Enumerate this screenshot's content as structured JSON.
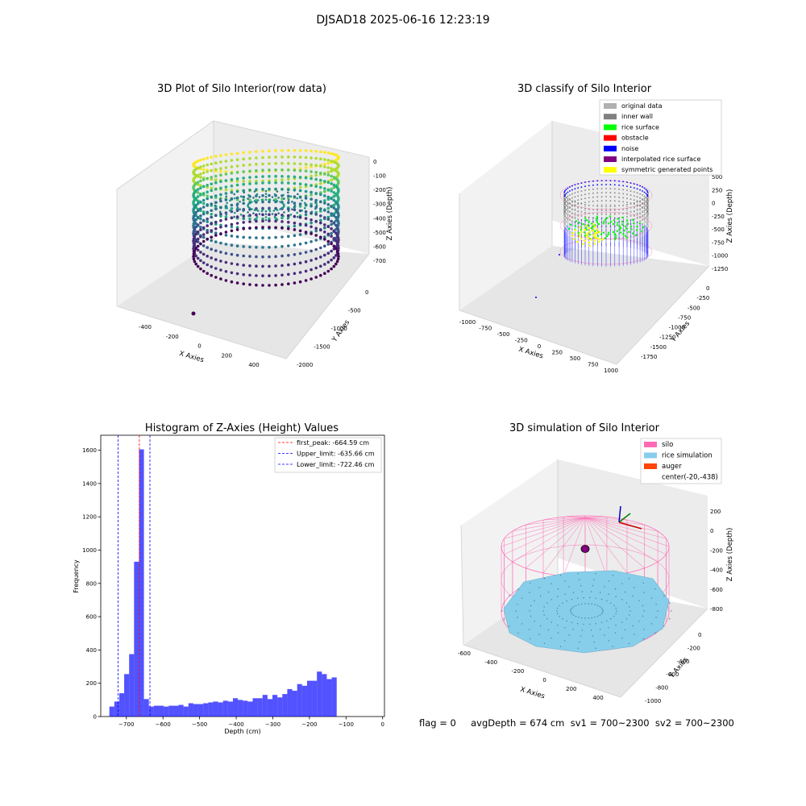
{
  "figure": {
    "suptitle": "DJSAD18 2025-06-16 12:23:19",
    "footer": "flag = 0     avgDepth = 674 cm  sv1 = 700~2300  sv2 = 700~2300"
  },
  "panels": {
    "p1": {
      "title": "3D Plot of Silo Interior(row data)",
      "xlabel": "X Axies",
      "ylabel": "Y Axies",
      "zlabel": "Z Axies (Depth)",
      "xticks": [
        "-400",
        "-200",
        "0",
        "200",
        "400"
      ],
      "yticks": [
        "0",
        "-500",
        "-1000",
        "-1500",
        "-2000"
      ],
      "zticks": [
        "0",
        "-100",
        "-200",
        "-300",
        "-400",
        "-500",
        "-600",
        "-700"
      ]
    },
    "p2": {
      "title": "3D classify of Silo Interior",
      "xlabel": "X Axies",
      "ylabel": "Y Axies",
      "zlabel": "Z Axies (Depth)",
      "xticks": [
        "-1000",
        "-750",
        "-500",
        "-250",
        "0",
        "250",
        "500",
        "750",
        "1000"
      ],
      "yticks": [
        "0",
        "-250",
        "-500",
        "-750",
        "-1000",
        "-1250",
        "-1500",
        "-1750"
      ],
      "zticks": [
        "500",
        "250",
        "0",
        "-250",
        "-500",
        "-750",
        "-1000",
        "-1250"
      ],
      "legend": [
        {
          "label": "original data",
          "color": "#b0b0b0"
        },
        {
          "label": "inner wall",
          "color": "#808080"
        },
        {
          "label": "rice surface",
          "color": "#00ff00"
        },
        {
          "label": "obstacle",
          "color": "#ff0000"
        },
        {
          "label": "noise",
          "color": "#0000ff"
        },
        {
          "label": "interpolated rice surface",
          "color": "#800080"
        },
        {
          "label": "symmetric generated points",
          "color": "#ffff00"
        }
      ]
    },
    "p4": {
      "title": "3D simulation of Silo Interior",
      "xlabel": "X Axies",
      "ylabel": "Y Axies",
      "zlabel": "Z Axies (Depth)",
      "xticks": [
        "-600",
        "-400",
        "-200",
        "0",
        "200",
        "400"
      ],
      "yticks": [
        "0",
        "-200",
        "-400",
        "-600",
        "-800",
        "-1000"
      ],
      "zticks": [
        "200",
        "0",
        "-200",
        "-400",
        "-600",
        "-800"
      ],
      "legend": [
        {
          "label": "silo",
          "color": "#ff69b4"
        },
        {
          "label": "rice simulation",
          "color": "#87ceeb"
        },
        {
          "label": "auger",
          "color": "#ff4500"
        },
        {
          "label": "center(-20,-438)",
          "color": ""
        }
      ]
    }
  },
  "chart_data": {
    "type": "bar",
    "title": "Histogram of Z-Axies (Height) Values",
    "xlabel": "Depth (cm)",
    "ylabel": "Frequency",
    "xlim": [
      -770,
      5
    ],
    "ylim": [
      0,
      1690
    ],
    "xticks": [
      -700,
      -600,
      -500,
      -400,
      -300,
      -200,
      -100,
      0
    ],
    "yticks": [
      0,
      200,
      400,
      600,
      800,
      1000,
      1200,
      1400,
      1600
    ],
    "bar_color": "#0000ff",
    "bin_start": -746.5,
    "bin_width": 13.5,
    "values": [
      60,
      90,
      140,
      255,
      375,
      930,
      1605,
      105,
      60,
      65,
      65,
      60,
      65,
      65,
      70,
      60,
      80,
      75,
      75,
      80,
      85,
      90,
      85,
      95,
      90,
      110,
      100,
      95,
      90,
      110,
      110,
      130,
      105,
      130,
      115,
      135,
      165,
      155,
      195,
      185,
      215,
      215,
      270,
      255,
      225,
      235
    ],
    "lines": [
      {
        "label": "first_peak: -664.59 cm",
        "x": -664.59,
        "color": "#ff0000"
      },
      {
        "label": "Upper_limit: -635.66 cm",
        "x": -635.66,
        "color": "#0000ff"
      },
      {
        "label": "Lower_limit: -722.46 cm",
        "x": -722.46,
        "color": "#0000ff"
      }
    ]
  }
}
